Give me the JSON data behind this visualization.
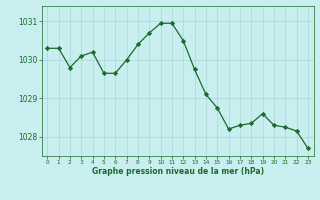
{
  "hours": [
    0,
    1,
    2,
    3,
    4,
    5,
    6,
    7,
    8,
    9,
    10,
    11,
    12,
    13,
    14,
    15,
    16,
    17,
    18,
    19,
    20,
    21,
    22,
    23
  ],
  "pressure": [
    1030.3,
    1030.3,
    1029.8,
    1030.1,
    1030.2,
    1029.65,
    1029.65,
    1030.0,
    1030.4,
    1030.7,
    1030.95,
    1030.95,
    1030.5,
    1029.75,
    1029.1,
    1028.75,
    1028.2,
    1028.3,
    1028.35,
    1028.6,
    1028.3,
    1028.25,
    1028.15,
    1027.7
  ],
  "line_color": "#1a6b2a",
  "marker": "D",
  "marker_size": 2.2,
  "bg_color": "#c8eef0",
  "grid_color": "#a8d8d8",
  "xlabel": "Graphe pression niveau de la mer (hPa)",
  "xlabel_color": "#1a6b2a",
  "tick_color": "#1a6b2a",
  "ylabel_ticks": [
    1028,
    1029,
    1030,
    1031
  ],
  "xlim": [
    -0.5,
    23.5
  ],
  "ylim": [
    1027.5,
    1031.4
  ]
}
